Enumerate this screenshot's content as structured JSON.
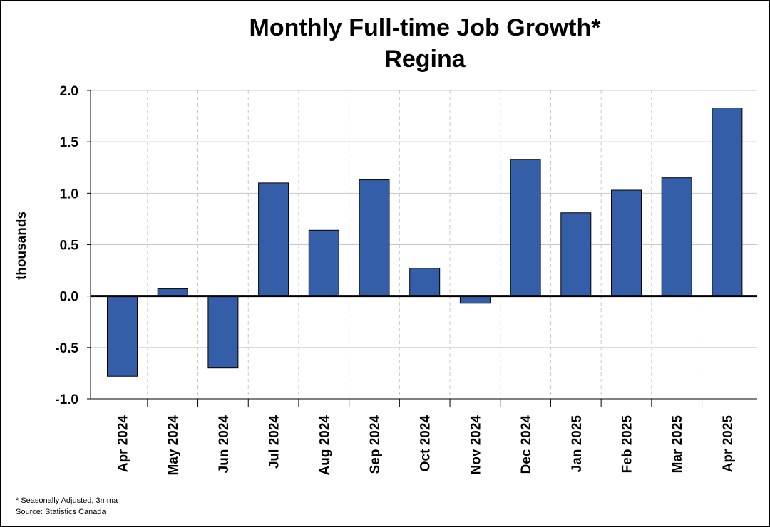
{
  "chart_data": {
    "type": "bar",
    "title": [
      "Monthly Full-time Job Growth*",
      "Regina"
    ],
    "ylabel": "thousands",
    "xlabel": "",
    "categories": [
      "Apr 2024",
      "May 2024",
      "Jun 2024",
      "Jul 2024",
      "Aug 2024",
      "Sep 2024",
      "Oct 2024",
      "Nov 2024",
      "Dec 2024",
      "Jan 2025",
      "Feb 2025",
      "Mar 2025",
      "Apr 2025"
    ],
    "values": [
      -0.78,
      0.07,
      -0.7,
      1.1,
      0.64,
      1.13,
      0.27,
      -0.07,
      1.33,
      0.81,
      1.03,
      1.15,
      1.83
    ],
    "ylim": [
      -1.0,
      2.0
    ],
    "yticks": [
      -1.0,
      -0.5,
      0.0,
      0.5,
      1.0,
      1.5,
      2.0
    ],
    "ytick_labels": [
      "-1.0",
      "-0.5",
      "0.0",
      "0.5",
      "1.0",
      "1.5",
      "2.0"
    ],
    "grid": true,
    "bar_color": "#345ea8",
    "footnotes": [
      "* Seasonally Adjusted, 3mma",
      "Source: Statistics Canada"
    ]
  }
}
